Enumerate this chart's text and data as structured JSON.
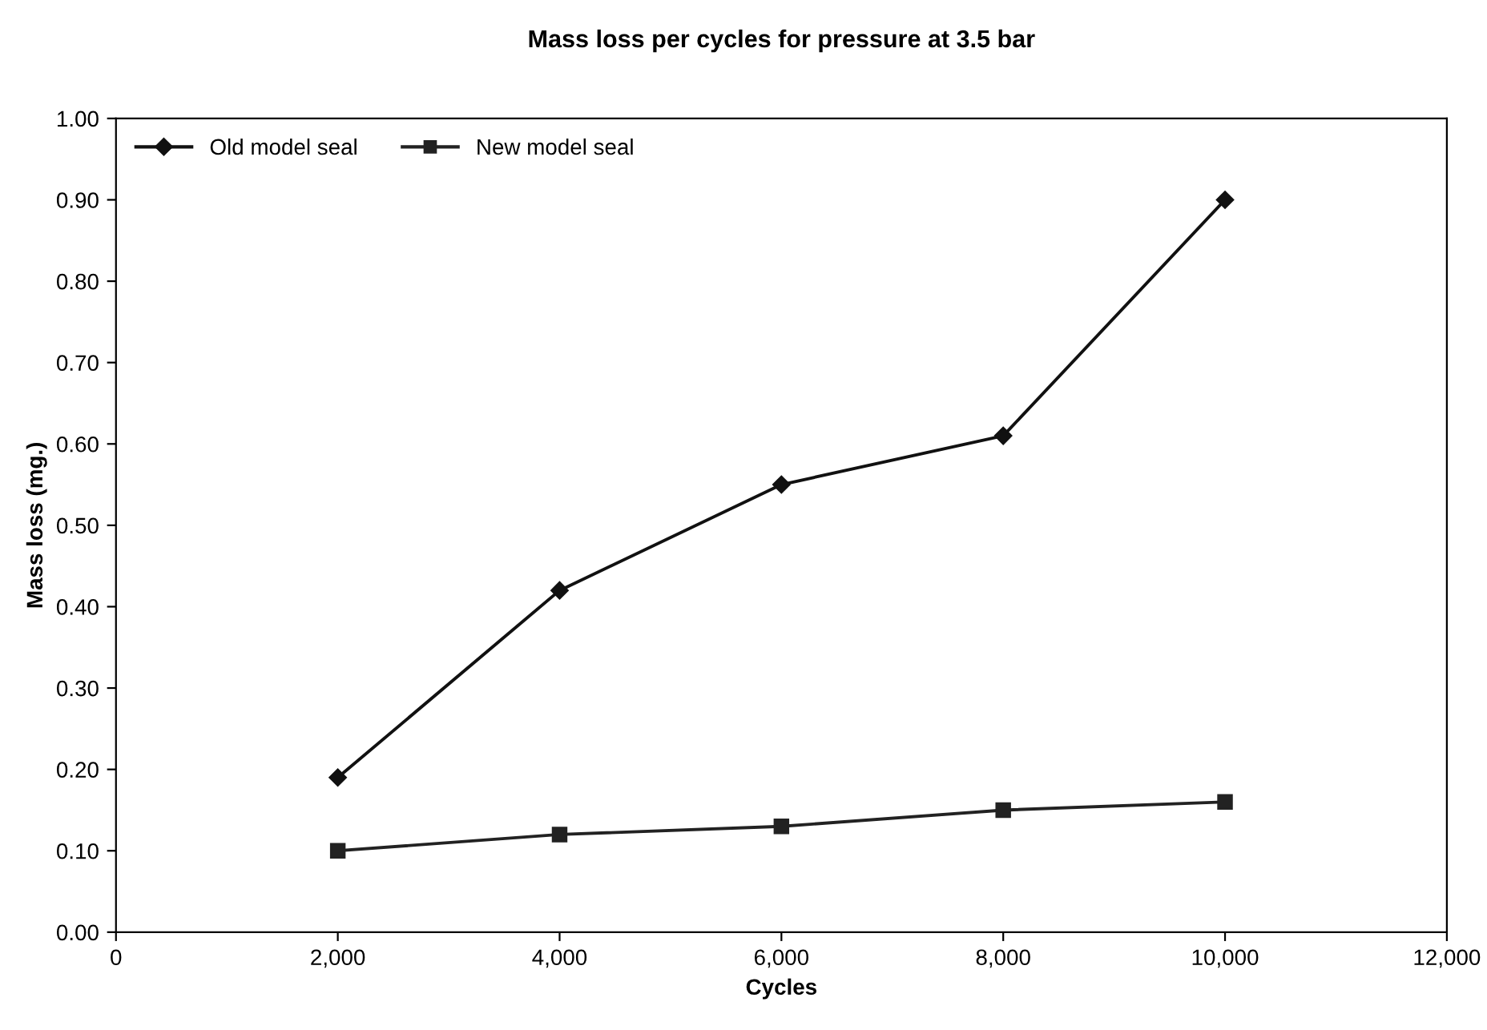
{
  "chart_data": {
    "type": "line",
    "title": "Mass loss per cycles for pressure at 3.5 bar",
    "xlabel": "Cycles",
    "ylabel": "Mass loss (mg.)",
    "x": [
      2000,
      4000,
      6000,
      8000,
      10000
    ],
    "series": [
      {
        "name": "Old model seal",
        "color": "#111111",
        "marker": "diamond",
        "values": [
          0.19,
          0.42,
          0.55,
          0.61,
          0.9
        ]
      },
      {
        "name": "New model seal",
        "color": "#222222",
        "marker": "square",
        "values": [
          0.1,
          0.12,
          0.13,
          0.15,
          0.16
        ]
      }
    ],
    "xlim": [
      0,
      12000
    ],
    "xticks": [
      {
        "value": 0,
        "label": "0"
      },
      {
        "value": 2000,
        "label": "2,000"
      },
      {
        "value": 4000,
        "label": "4,000"
      },
      {
        "value": 6000,
        "label": "6,000"
      },
      {
        "value": 8000,
        "label": "8,000"
      },
      {
        "value": 10000,
        "label": "10,000"
      },
      {
        "value": 12000,
        "label": "12,000"
      }
    ],
    "ylim": [
      0,
      1.0
    ],
    "yticks": [
      {
        "value": 0,
        "label": "0.00"
      },
      {
        "value": 0.1,
        "label": "0.10"
      },
      {
        "value": 0.2,
        "label": "0.20"
      },
      {
        "value": 0.3,
        "label": "0.30"
      },
      {
        "value": 0.4,
        "label": "0.40"
      },
      {
        "value": 0.5,
        "label": "0.50"
      },
      {
        "value": 0.6,
        "label": "0.60"
      },
      {
        "value": 0.7,
        "label": "0.70"
      },
      {
        "value": 0.8,
        "label": "0.80"
      },
      {
        "value": 0.9,
        "label": "0.90"
      },
      {
        "value": 1.0,
        "label": "1.00"
      }
    ],
    "grid": false,
    "legend": "top left",
    "line_style": "solid"
  }
}
